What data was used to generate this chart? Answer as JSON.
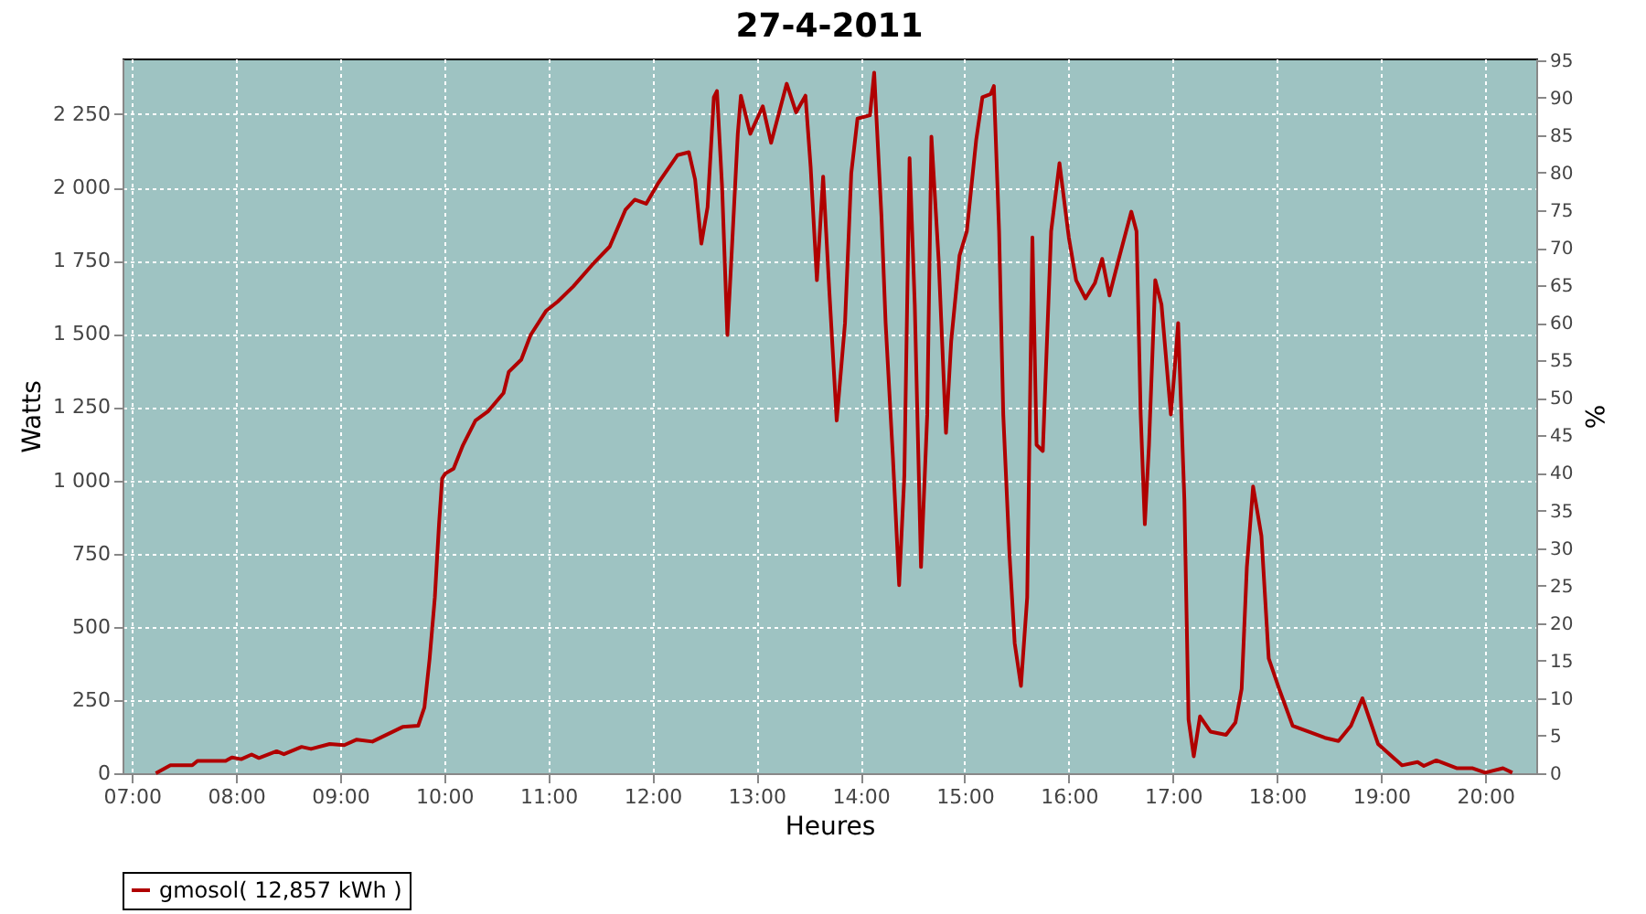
{
  "chart_data": {
    "type": "line",
    "title": "27-4-2011",
    "xlabel": "Heures",
    "ylabel": "Watts",
    "y2label": "%",
    "xlim": [
      6.91,
      20.49
    ],
    "xticks": [
      {
        "value": 7,
        "label": "07:00"
      },
      {
        "value": 8,
        "label": "08:00"
      },
      {
        "value": 9,
        "label": "09:00"
      },
      {
        "value": 10,
        "label": "10:00"
      },
      {
        "value": 11,
        "label": "11:00"
      },
      {
        "value": 12,
        "label": "12:00"
      },
      {
        "value": 13,
        "label": "13:00"
      },
      {
        "value": 14,
        "label": "14:00"
      },
      {
        "value": 15,
        "label": "15:00"
      },
      {
        "value": 16,
        "label": "16:00"
      },
      {
        "value": 17,
        "label": "17:00"
      },
      {
        "value": 18,
        "label": "18:00"
      },
      {
        "value": 19,
        "label": "19:00"
      },
      {
        "value": 20,
        "label": "20:00"
      }
    ],
    "ylim": [
      0,
      2440
    ],
    "yticks": [
      0,
      250,
      500,
      750,
      {
        "value": 1000,
        "label": "1 000"
      },
      {
        "value": 1250,
        "label": "1 250"
      },
      {
        "value": 1500,
        "label": "1 500"
      },
      {
        "value": 1750,
        "label": "1 750"
      },
      {
        "value": 2000,
        "label": "2 000"
      },
      {
        "value": 2250,
        "label": "2 250"
      }
    ],
    "y2lim": [
      0,
      95.2
    ],
    "y2ticks": [
      0,
      5,
      10,
      15,
      20,
      25,
      30,
      35,
      40,
      45,
      50,
      55,
      60,
      65,
      70,
      75,
      80,
      85,
      90,
      95
    ],
    "grid": true,
    "legend": "bottom",
    "line_style": "solid",
    "series": [
      {
        "name": "gmosol( 12,857 kWh )",
        "color": "#b00000",
        "x": [
          7.23,
          7.37,
          7.58,
          7.63,
          7.9,
          7.96,
          8.05,
          8.15,
          8.22,
          8.39,
          8.46,
          8.63,
          8.72,
          8.9,
          9.04,
          9.16,
          9.31,
          9.6,
          9.75,
          9.81,
          9.86,
          9.91,
          9.95,
          9.98,
          10.01,
          10.09,
          10.18,
          10.3,
          10.42,
          10.57,
          10.62,
          10.74,
          10.83,
          10.98,
          11.09,
          11.24,
          11.42,
          11.59,
          11.74,
          11.83,
          11.94,
          12.06,
          12.24,
          12.35,
          12.41,
          12.47,
          12.53,
          12.59,
          12.62,
          12.67,
          12.72,
          12.76,
          12.82,
          12.85,
          12.94,
          13.06,
          13.14,
          13.29,
          13.38,
          13.47,
          13.52,
          13.58,
          13.64,
          13.7,
          13.77,
          13.85,
          13.91,
          13.97,
          14.09,
          14.13,
          14.2,
          14.24,
          14.31,
          14.37,
          14.42,
          14.47,
          14.52,
          14.58,
          14.64,
          14.68,
          14.75,
          14.82,
          14.87,
          14.95,
          15.02,
          15.11,
          15.17,
          15.25,
          15.28,
          15.33,
          15.37,
          15.43,
          15.48,
          15.54,
          15.6,
          15.65,
          15.69,
          15.75,
          15.83,
          15.91,
          16.0,
          16.07,
          16.16,
          16.25,
          16.32,
          16.39,
          16.48,
          16.6,
          16.65,
          16.69,
          16.73,
          16.77,
          16.83,
          16.89,
          16.98,
          17.01,
          17.05,
          17.11,
          17.15,
          17.2,
          17.26,
          17.36,
          17.51,
          17.6,
          17.66,
          17.71,
          17.77,
          17.85,
          17.92,
          18.02,
          18.15,
          18.3,
          18.46,
          18.59,
          18.71,
          18.82,
          18.97,
          19.2,
          19.35,
          19.41,
          19.53,
          19.73,
          19.88,
          20.0,
          20.17,
          20.26
        ],
        "values": [
          0,
          27,
          27,
          42,
          42,
          54,
          48,
          64,
          52,
          75,
          65,
          90,
          83,
          100,
          96,
          115,
          108,
          158,
          162,
          225,
          392,
          600,
          850,
          1006,
          1023,
          1040,
          1120,
          1204,
          1235,
          1298,
          1370,
          1412,
          1496,
          1579,
          1610,
          1662,
          1735,
          1798,
          1923,
          1958,
          1944,
          2017,
          2110,
          2120,
          2027,
          1808,
          1933,
          2308,
          2329,
          1996,
          1496,
          1767,
          2183,
          2313,
          2183,
          2277,
          2152,
          2354,
          2256,
          2313,
          2069,
          1683,
          2037,
          1642,
          1204,
          1537,
          2048,
          2235,
          2246,
          2392,
          1902,
          1537,
          1079,
          642,
          1017,
          2100,
          1600,
          704,
          1225,
          2173,
          1748,
          1162,
          1475,
          1767,
          1850,
          2162,
          2308,
          2319,
          2346,
          1850,
          1225,
          748,
          444,
          298,
          600,
          1829,
          1121,
          1100,
          1850,
          2083,
          1829,
          1683,
          1621,
          1673,
          1756,
          1631,
          1756,
          1917,
          1850,
          1225,
          850,
          1121,
          1683,
          1600,
          1225,
          1350,
          1537,
          933,
          183,
          58,
          194,
          142,
          131,
          173,
          288,
          704,
          979,
          810,
          392,
          288,
          162,
          142,
          121,
          110,
          162,
          256,
          100,
          27,
          38,
          25,
          44,
          17,
          17,
          2,
          17,
          2
        ]
      }
    ]
  }
}
